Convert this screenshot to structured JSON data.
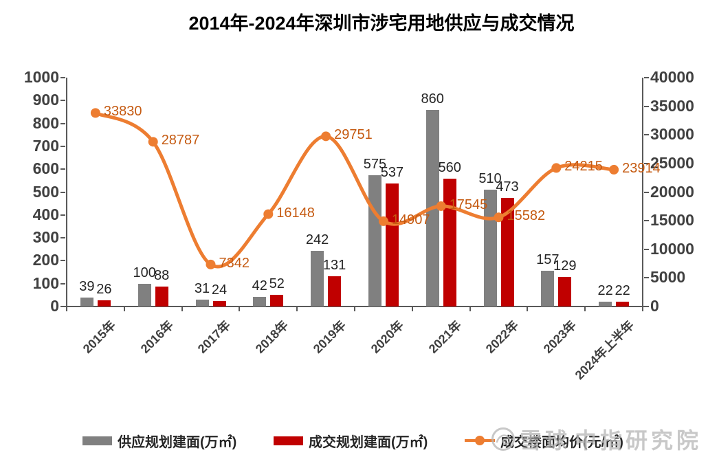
{
  "title": "2014年-2024年深圳市涉宅用地供应与成交情况",
  "watermark": {
    "brand": "雪球",
    "source": "中指研究院"
  },
  "chart_data": {
    "type": "bar",
    "title": "2014年-2024年深圳市涉宅用地供应与成交情况",
    "categories": [
      "2015年",
      "2016年",
      "2017年",
      "2018年",
      "2019年",
      "2020年",
      "2021年",
      "2022年",
      "2023年",
      "2024年上半年"
    ],
    "series": [
      {
        "name": "供应规划建面(万㎡)",
        "chart_type": "bar",
        "axis": "left",
        "color": "#808080",
        "values": [
          39,
          100,
          31,
          42,
          242,
          575,
          860,
          510,
          157,
          22
        ]
      },
      {
        "name": "成交规划建面(万㎡)",
        "chart_type": "bar",
        "axis": "left",
        "color": "#C00000",
        "values": [
          26,
          88,
          24,
          52,
          131,
          537,
          560,
          473,
          129,
          22
        ]
      },
      {
        "name": "成交楼面均价(元/㎡)",
        "chart_type": "line",
        "axis": "right",
        "color": "#ED7D31",
        "label_color": "#C55A11",
        "values": [
          33830,
          28787,
          7342,
          16148,
          29751,
          14907,
          17545,
          15582,
          24215,
          23914
        ]
      }
    ],
    "left_axis": {
      "min": 0,
      "max": 1000,
      "step": 100,
      "tick_labels": [
        "0",
        "100",
        "200",
        "300",
        "400",
        "500",
        "600",
        "700",
        "800",
        "900",
        "1000"
      ]
    },
    "right_axis": {
      "min": 0,
      "max": 40000,
      "step": 5000,
      "tick_labels": [
        "0",
        "5000",
        "10000",
        "15000",
        "20000",
        "25000",
        "30000",
        "35000",
        "40000"
      ]
    },
    "grid": false,
    "legend_position": "bottom"
  },
  "colors": {
    "axis_line": "#595959",
    "axis_label": "#404040",
    "bar_label": "#262626",
    "watermark": "#b9b9b9"
  }
}
